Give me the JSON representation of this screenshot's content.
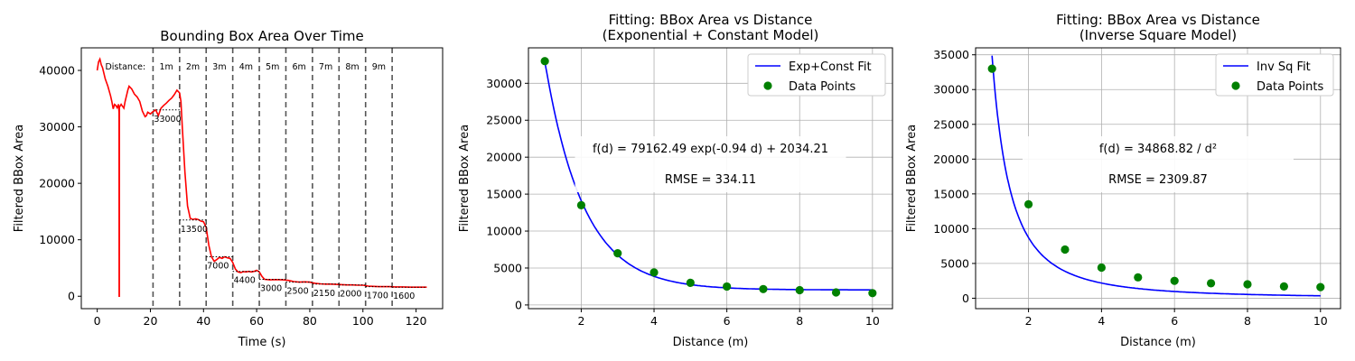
{
  "chart_data": [
    {
      "type": "line",
      "title": "Bounding Box Area Over Time",
      "xlabel": "Time (s)",
      "ylabel": "Filtered BBox Area",
      "xlim": [
        -6,
        130
      ],
      "ylim": [
        -2200,
        44000
      ],
      "xticks": [
        0,
        20,
        40,
        60,
        80,
        100,
        120
      ],
      "yticks": [
        0,
        10000,
        20000,
        30000,
        40000
      ],
      "grid": false,
      "series": [
        {
          "color": "#ff0000",
          "points": [
            [
              0,
              40000
            ],
            [
              0.5,
              41500
            ],
            [
              1,
              42000
            ],
            [
              1.5,
              41000
            ],
            [
              2,
              40500
            ],
            [
              3,
              38500
            ],
            [
              4,
              37200
            ],
            [
              5,
              35500
            ],
            [
              5.5,
              34500
            ],
            [
              6,
              33200
            ],
            [
              6.5,
              34000
            ],
            [
              7,
              33800
            ],
            [
              7.5,
              33400
            ],
            [
              8,
              34000
            ],
            [
              8.2,
              32500
            ],
            [
              8.25,
              0
            ],
            [
              8.3,
              0
            ],
            [
              8.35,
              33500
            ],
            [
              9,
              34000
            ],
            [
              10,
              33300
            ],
            [
              10.5,
              34500
            ],
            [
              11,
              35500
            ],
            [
              11.5,
              36500
            ],
            [
              12,
              37200
            ],
            [
              13,
              36700
            ],
            [
              14,
              35800
            ],
            [
              15,
              35300
            ],
            [
              16,
              34500
            ],
            [
              17,
              32800
            ],
            [
              18,
              31800
            ],
            [
              18.5,
              32000
            ],
            [
              19,
              32600
            ],
            [
              20,
              32300
            ],
            [
              21,
              32700
            ],
            [
              22,
              33000
            ],
            [
              23,
              32000
            ],
            [
              24,
              33300
            ],
            [
              25,
              33800
            ],
            [
              26,
              34200
            ],
            [
              27,
              34700
            ],
            [
              28,
              35100
            ],
            [
              29,
              35700
            ],
            [
              30,
              36500
            ],
            [
              31,
              36000
            ],
            [
              31.5,
              34500
            ],
            [
              32,
              30000
            ],
            [
              33,
              22000
            ],
            [
              34,
              16000
            ],
            [
              35,
              13800
            ],
            [
              36,
              13600
            ],
            [
              37,
              13700
            ],
            [
              38,
              13600
            ],
            [
              39,
              13300
            ],
            [
              40,
              13200
            ],
            [
              41,
              12200
            ],
            [
              42,
              9000
            ],
            [
              43,
              7000
            ],
            [
              44,
              6200
            ],
            [
              45,
              6500
            ],
            [
              46,
              6900
            ],
            [
              47,
              6700
            ],
            [
              48,
              7000
            ],
            [
              49,
              6800
            ],
            [
              50,
              6700
            ],
            [
              51,
              6000
            ],
            [
              52,
              4800
            ],
            [
              53,
              4300
            ],
            [
              54,
              4200
            ],
            [
              55,
              4350
            ],
            [
              56,
              4300
            ],
            [
              57,
              4400
            ],
            [
              58,
              4300
            ],
            [
              59,
              4400
            ],
            [
              60,
              4600
            ],
            [
              61,
              4300
            ],
            [
              62,
              3500
            ],
            [
              63,
              3000
            ],
            [
              65,
              2900
            ],
            [
              67,
              2950
            ],
            [
              70,
              2900
            ],
            [
              72,
              2800
            ],
            [
              74,
              2600
            ],
            [
              76,
              2500
            ],
            [
              78,
              2550
            ],
            [
              80,
              2500
            ],
            [
              82,
              2300
            ],
            [
              84,
              2200
            ],
            [
              86,
              2150
            ],
            [
              88,
              2150
            ],
            [
              90,
              2100
            ],
            [
              92,
              2050
            ],
            [
              94,
              2000
            ],
            [
              96,
              2000
            ],
            [
              98,
              1950
            ],
            [
              100,
              1950
            ],
            [
              102,
              1800
            ],
            [
              104,
              1750
            ],
            [
              106,
              1700
            ],
            [
              108,
              1700
            ],
            [
              110,
              1700
            ],
            [
              112,
              1650
            ],
            [
              115,
              1650
            ],
            [
              118,
              1600
            ],
            [
              121,
              1600
            ],
            [
              124,
              1600
            ]
          ]
        }
      ],
      "vlines": [
        21,
        31,
        41,
        51,
        61,
        71,
        81,
        91,
        101,
        111
      ],
      "distance_header": "Distance:",
      "distance_labels": [
        "1m",
        "2m",
        "3m",
        "4m",
        "5m",
        "6m",
        "7m",
        "8m",
        "9m"
      ],
      "value_annotations": [
        {
          "x": 22,
          "y": 33000,
          "text": "33000"
        },
        {
          "x": 32,
          "y": 13500,
          "text": "13500"
        },
        {
          "x": 42,
          "y": 7000,
          "text": "7000"
        },
        {
          "x": 52,
          "y": 4400,
          "text": "4400"
        },
        {
          "x": 62,
          "y": 3000,
          "text": "3000"
        },
        {
          "x": 72,
          "y": 2500,
          "text": "2500"
        },
        {
          "x": 82,
          "y": 2150,
          "text": "2150"
        },
        {
          "x": 92,
          "y": 2000,
          "text": "2000"
        },
        {
          "x": 102,
          "y": 1700,
          "text": "1700"
        },
        {
          "x": 112,
          "y": 1600,
          "text": "1600"
        }
      ]
    },
    {
      "type": "scatter",
      "title": "Fitting: BBox Area vs Distance",
      "subtitle": "(Exponential + Constant Model)",
      "xlabel": "Distance (m)",
      "ylabel": "Filtered BBox Area",
      "xlim": [
        0.55,
        10.55
      ],
      "ylim": [
        -500,
        34800
      ],
      "xticks": [
        2,
        4,
        6,
        8,
        10
      ],
      "yticks": [
        0,
        5000,
        10000,
        15000,
        20000,
        25000,
        30000
      ],
      "grid": true,
      "legend_position": "upper right",
      "fit": {
        "label": "Exp+Const Fit",
        "color": "#0000ff",
        "model": "exp_const",
        "a": 79162.49,
        "b": 0.94,
        "c": 2034.21,
        "x_range": [
          1,
          10
        ]
      },
      "points": {
        "label": "Data Points",
        "color": "#008000",
        "x": [
          1,
          2,
          3,
          4,
          5,
          6,
          7,
          8,
          9,
          10
        ],
        "y": [
          33000,
          13500,
          7000,
          4400,
          3000,
          2500,
          2150,
          2000,
          1700,
          1600
        ]
      },
      "annotations": [
        "f(d) = 79162.49 exp(-0.94 d) + 2034.21",
        "RMSE = 334.11"
      ]
    },
    {
      "type": "scatter",
      "title": "Fitting: BBox Area vs Distance",
      "subtitle": "(Inverse Square Model)",
      "xlabel": "Distance (m)",
      "ylabel": "Filtered BBox Area",
      "xlim": [
        0.55,
        10.55
      ],
      "ylim": [
        -1500,
        36000
      ],
      "xticks": [
        2,
        4,
        6,
        8,
        10
      ],
      "yticks": [
        0,
        5000,
        10000,
        15000,
        20000,
        25000,
        30000,
        35000
      ],
      "grid": true,
      "legend_position": "upper right",
      "fit": {
        "label": "Inv Sq Fit",
        "color": "#0000ff",
        "model": "inv_sq",
        "a": 34868.82,
        "x_range": [
          1,
          10
        ]
      },
      "points": {
        "label": "Data Points",
        "color": "#008000",
        "x": [
          1,
          2,
          3,
          4,
          5,
          6,
          7,
          8,
          9,
          10
        ],
        "y": [
          33000,
          13500,
          7000,
          4400,
          3000,
          2500,
          2150,
          2000,
          1700,
          1600
        ]
      },
      "annotations": [
        "f(d) = 34868.82 / d²",
        "RMSE = 2309.87"
      ]
    }
  ]
}
